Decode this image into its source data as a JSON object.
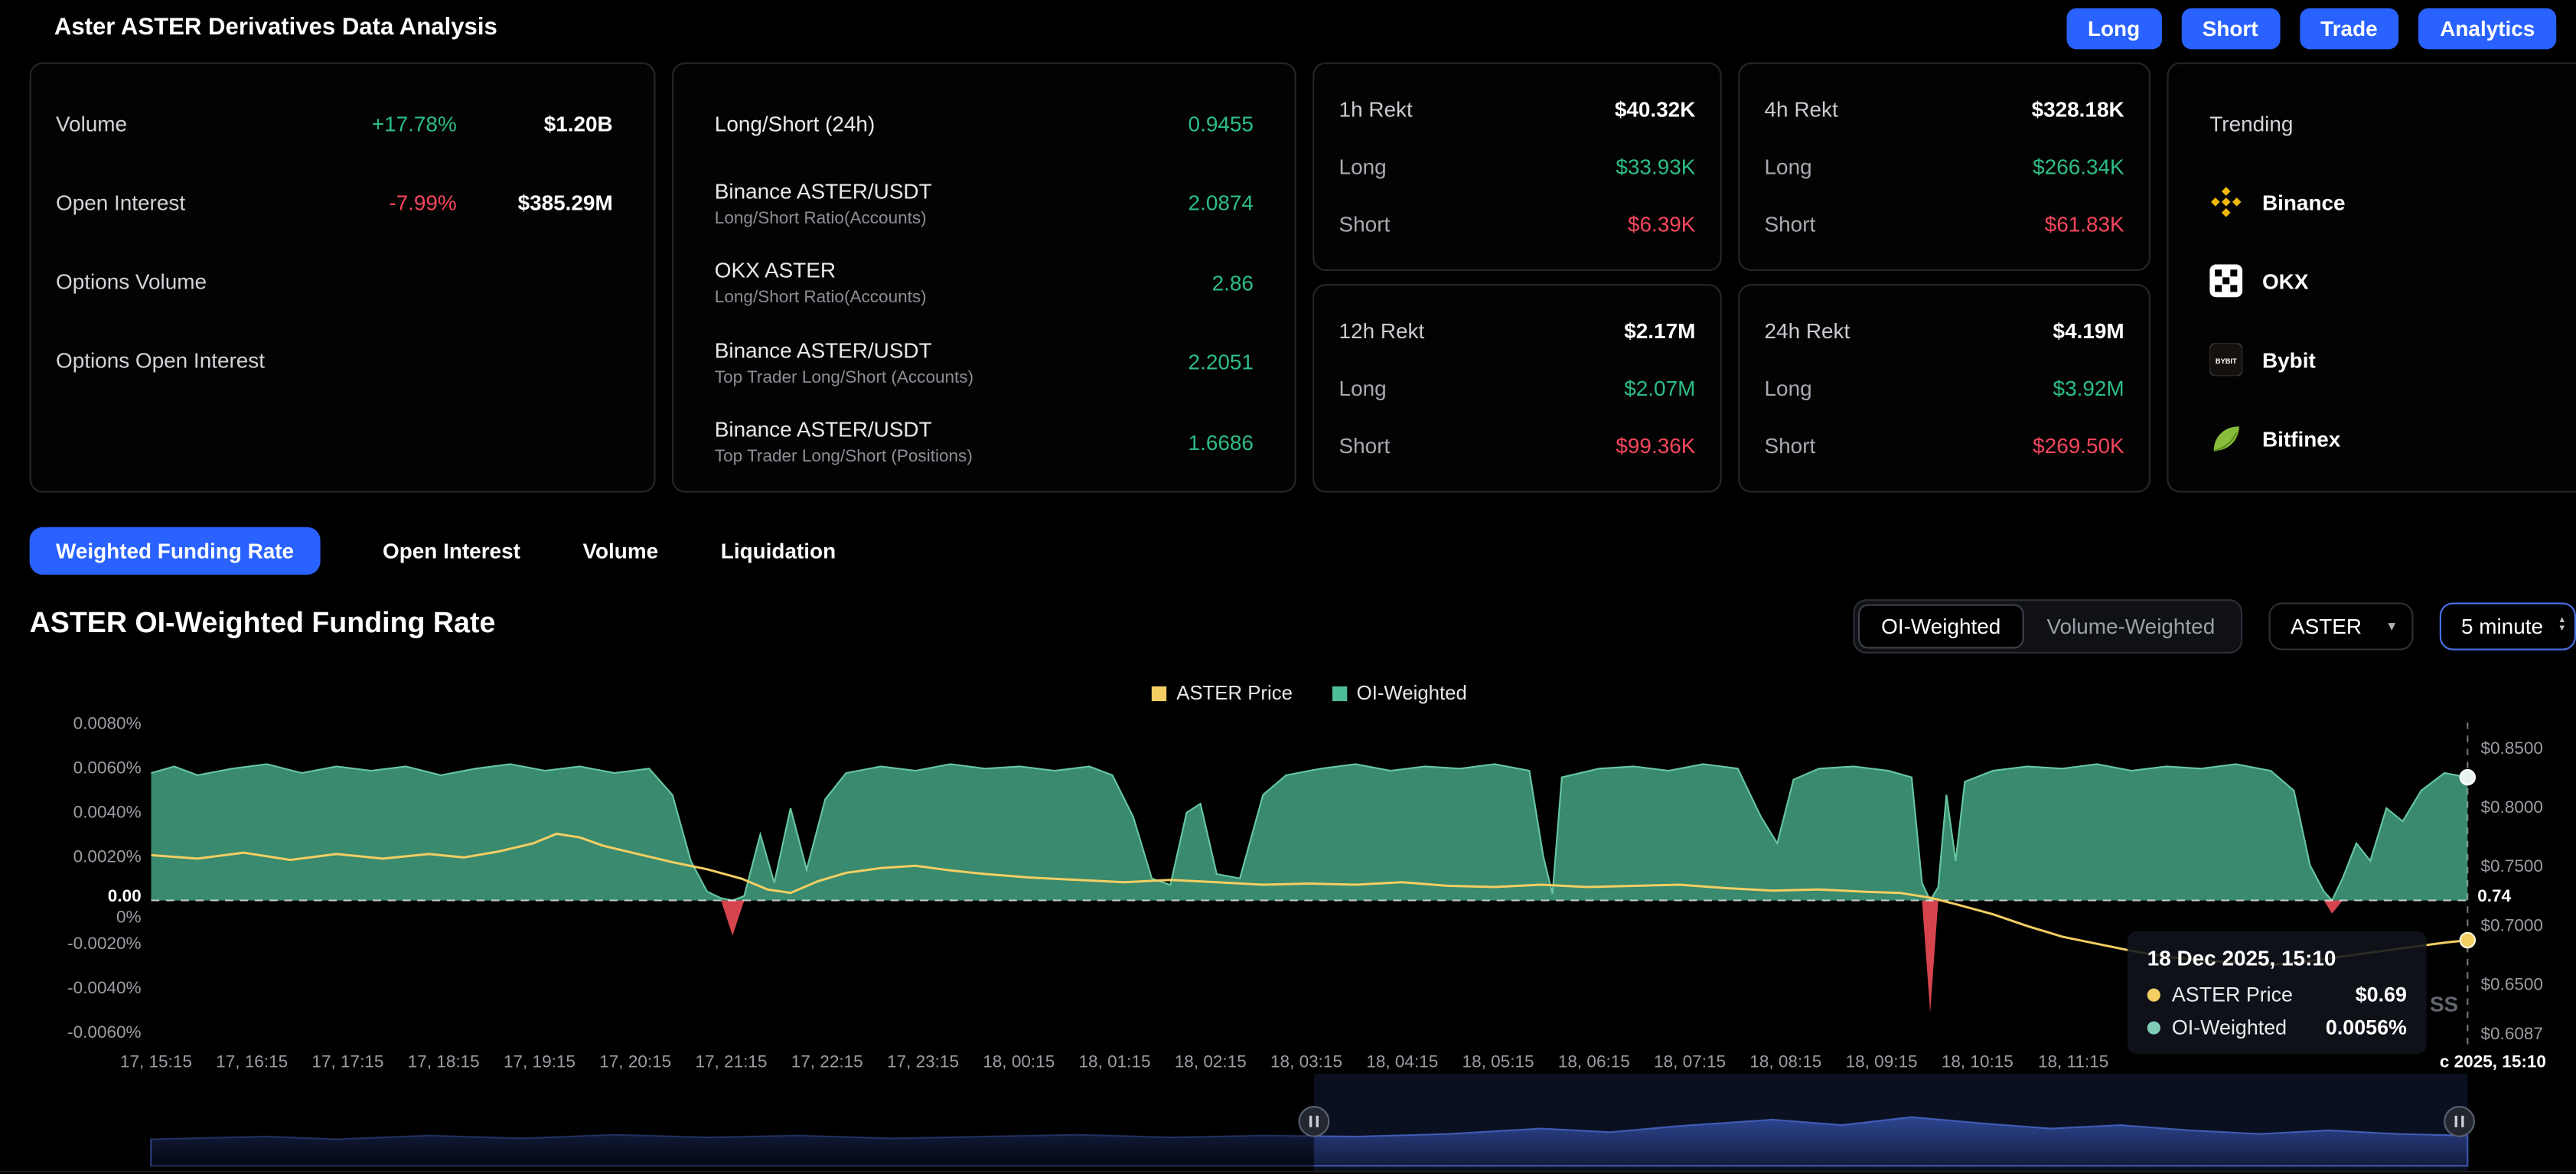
{
  "header": {
    "title": "Aster ASTER Derivatives Data Analysis",
    "buttons": [
      {
        "label": "Long"
      },
      {
        "label": "Short"
      },
      {
        "label": "Trade"
      },
      {
        "label": "Analytics"
      }
    ]
  },
  "colors": {
    "green": "#2EBD85",
    "red": "#F6465D",
    "blue": "#2962FF",
    "area_green": "#3E9677",
    "area_red": "#E14852",
    "price_yellow": "#F3CE63"
  },
  "icons": {
    "caret_down": "▾",
    "spinner_up": "▴",
    "spinner_down": "▾"
  },
  "stats": {
    "rows": [
      {
        "label": "Volume",
        "pct": "+17.78%",
        "value": "$1.20B"
      },
      {
        "label": "Open Interest",
        "pct": "-7.99%",
        "value": "$385.29M"
      },
      {
        "label": "Options Volume",
        "pct": "",
        "value": ""
      },
      {
        "label": "Options Open Interest",
        "pct": "",
        "value": ""
      }
    ]
  },
  "long_short": {
    "rows": [
      {
        "label": "Long/Short (24h)",
        "sub": "",
        "value": "0.9455"
      },
      {
        "label": "Binance ASTER/USDT",
        "sub": "Long/Short Ratio(Accounts)",
        "value": "2.0874"
      },
      {
        "label": "OKX ASTER",
        "sub": "Long/Short Ratio(Accounts)",
        "value": "2.86"
      },
      {
        "label": "Binance ASTER/USDT",
        "sub": "Top Trader Long/Short (Accounts)",
        "value": "2.2051"
      },
      {
        "label": "Binance ASTER/USDT",
        "sub": "Top Trader Long/Short (Positions)",
        "value": "1.6686"
      }
    ]
  },
  "rekt_labels": {
    "long": "Long",
    "short": "Short"
  },
  "rekt": [
    {
      "title": "1h Rekt",
      "total": "$40.32K",
      "long": "$33.93K",
      "short": "$6.39K"
    },
    {
      "title": "12h Rekt",
      "total": "$2.17M",
      "long": "$2.07M",
      "short": "$99.36K"
    },
    {
      "title": "4h Rekt",
      "total": "$328.18K",
      "long": "$266.34K",
      "short": "$61.83K"
    },
    {
      "title": "24h Rekt",
      "total": "$4.19M",
      "long": "$3.92M",
      "short": "$269.50K"
    }
  ],
  "trending": {
    "title": "Trending",
    "items": [
      {
        "name": "Binance",
        "icon": "binance-icon"
      },
      {
        "name": "OKX",
        "icon": "okx-icon"
      },
      {
        "name": "Bybit",
        "icon": "bybit-icon",
        "icon_text": "BYBIT"
      },
      {
        "name": "Bitfinex",
        "icon": "bitfinex-icon"
      }
    ]
  },
  "tabs": [
    {
      "label": "Weighted Funding Rate",
      "active": true
    },
    {
      "label": "Open Interest",
      "active": false
    },
    {
      "label": "Volume",
      "active": false
    },
    {
      "label": "Liquidation",
      "active": false
    }
  ],
  "chart_header": {
    "title": "ASTER OI-Weighted Funding Rate",
    "toggle": [
      {
        "label": "OI-Weighted",
        "active": true
      },
      {
        "label": "Volume-Weighted",
        "active": false
      }
    ],
    "symbol_select": "ASTER",
    "interval_select": "5 minute"
  },
  "legend": [
    {
      "label": "ASTER Price",
      "color": "#F3CE63"
    },
    {
      "label": "OI-Weighted",
      "color": "#4DBE96"
    }
  ],
  "tooltip": {
    "title": "18 Dec 2025, 15:10",
    "rows": [
      {
        "label": "ASTER Price",
        "value": "$0.69"
      },
      {
        "label": "OI-Weighted",
        "value": "0.0056%"
      }
    ]
  },
  "watermark": "SS",
  "chart_data": {
    "type": "area",
    "title": "ASTER OI-Weighted Funding Rate",
    "x_ticks": [
      "17, 15:15",
      "17, 16:15",
      "17, 17:15",
      "17, 18:15",
      "17, 19:15",
      "17, 20:15",
      "17, 21:15",
      "17, 22:15",
      "17, 23:15",
      "18, 00:15",
      "18, 01:15",
      "18, 02:15",
      "18, 03:15",
      "18, 04:15",
      "18, 05:15",
      "18, 06:15",
      "18, 07:15",
      "18, 08:15",
      "18, 09:15",
      "18, 10:15",
      "18, 11:15"
    ],
    "x_cursor_label": "c 2025, 15:10",
    "left_axis": {
      "unit": "%",
      "range": [
        -0.0067,
        0.0081
      ],
      "ticks": [
        {
          "v": 0.008,
          "label": "0.0080%"
        },
        {
          "v": 0.006,
          "label": "0.0060%"
        },
        {
          "v": 0.004,
          "label": "0.0040%"
        },
        {
          "v": 0.002,
          "label": "0.0020%"
        },
        {
          "v": 0,
          "label": "0%",
          "dy": 11
        },
        {
          "v": -0.002,
          "label": "-0.0020%"
        },
        {
          "v": -0.004,
          "label": "-0.0040%"
        },
        {
          "v": -0.006,
          "label": "-0.0060%"
        }
      ]
    },
    "right_axis": {
      "unit": "$",
      "range": [
        0.5972,
        0.8722
      ],
      "ticks": [
        {
          "v": 0.85,
          "label": "$0.8500"
        },
        {
          "v": 0.8,
          "label": "$0.8000"
        },
        {
          "v": 0.75,
          "label": "$0.7500"
        },
        {
          "v": 0.7,
          "label": "$0.7000"
        },
        {
          "v": 0.65,
          "label": "$0.6500"
        },
        {
          "v": 0.6087,
          "label": "$0.6087"
        }
      ]
    },
    "zero_line": {
      "left_label": "0.00",
      "right_label": "0.74"
    },
    "end_markers": {
      "price": 0.688,
      "funding": 0.0056
    },
    "series": {
      "funding": {
        "name": "OI-Weighted",
        "kind": "area",
        "axis": "left",
        "color": "#3E9677",
        "edge": "#66C79E",
        "negative_color": "#E14852",
        "points": [
          [
            0,
            0.0058
          ],
          [
            0.01,
            0.0061
          ],
          [
            0.02,
            0.0057
          ],
          [
            0.035,
            0.006
          ],
          [
            0.05,
            0.0062
          ],
          [
            0.065,
            0.0058
          ],
          [
            0.08,
            0.0061
          ],
          [
            0.095,
            0.0059
          ],
          [
            0.11,
            0.0061
          ],
          [
            0.125,
            0.0057
          ],
          [
            0.14,
            0.006
          ],
          [
            0.155,
            0.0062
          ],
          [
            0.17,
            0.0059
          ],
          [
            0.185,
            0.0061
          ],
          [
            0.2,
            0.0058
          ],
          [
            0.215,
            0.006
          ],
          [
            0.225,
            0.0048
          ],
          [
            0.233,
            0.0018
          ],
          [
            0.24,
            0.0004
          ],
          [
            0.246,
            0.0001
          ],
          [
            0.251,
            -0.0016
          ],
          [
            0.256,
            0.0002
          ],
          [
            0.263,
            0.003
          ],
          [
            0.269,
            0.0008
          ],
          [
            0.276,
            0.0042
          ],
          [
            0.283,
            0.0014
          ],
          [
            0.291,
            0.0046
          ],
          [
            0.3,
            0.0058
          ],
          [
            0.315,
            0.0061
          ],
          [
            0.33,
            0.0059
          ],
          [
            0.345,
            0.0062
          ],
          [
            0.36,
            0.006
          ],
          [
            0.375,
            0.0061
          ],
          [
            0.39,
            0.0059
          ],
          [
            0.405,
            0.0061
          ],
          [
            0.415,
            0.0057
          ],
          [
            0.424,
            0.0038
          ],
          [
            0.432,
            0.001
          ],
          [
            0.44,
            0.0007
          ],
          [
            0.447,
            0.004
          ],
          [
            0.453,
            0.0044
          ],
          [
            0.46,
            0.0012
          ],
          [
            0.47,
            0.001
          ],
          [
            0.48,
            0.0048
          ],
          [
            0.49,
            0.0057
          ],
          [
            0.505,
            0.006
          ],
          [
            0.52,
            0.0062
          ],
          [
            0.535,
            0.0059
          ],
          [
            0.55,
            0.0061
          ],
          [
            0.565,
            0.006
          ],
          [
            0.58,
            0.0062
          ],
          [
            0.595,
            0.0059
          ],
          [
            0.601,
            0.002
          ],
          [
            0.605,
            0.0003
          ],
          [
            0.609,
            0.0056
          ],
          [
            0.625,
            0.006
          ],
          [
            0.64,
            0.0061
          ],
          [
            0.655,
            0.0059
          ],
          [
            0.67,
            0.0062
          ],
          [
            0.685,
            0.006
          ],
          [
            0.695,
            0.0038
          ],
          [
            0.702,
            0.0026
          ],
          [
            0.709,
            0.0055
          ],
          [
            0.72,
            0.006
          ],
          [
            0.735,
            0.0061
          ],
          [
            0.75,
            0.0059
          ],
          [
            0.76,
            0.0056
          ],
          [
            0.7645,
            0.0008
          ],
          [
            0.768,
            -0.0051
          ],
          [
            0.7715,
            0.0006
          ],
          [
            0.775,
            0.0048
          ],
          [
            0.779,
            0.0018
          ],
          [
            0.783,
            0.0054
          ],
          [
            0.795,
            0.0059
          ],
          [
            0.81,
            0.0061
          ],
          [
            0.825,
            0.006
          ],
          [
            0.84,
            0.0062
          ],
          [
            0.855,
            0.0059
          ],
          [
            0.87,
            0.0061
          ],
          [
            0.885,
            0.006
          ],
          [
            0.9,
            0.0062
          ],
          [
            0.915,
            0.0059
          ],
          [
            0.925,
            0.005
          ],
          [
            0.932,
            0.0016
          ],
          [
            0.938,
            0.0004
          ],
          [
            0.9415,
            -0.0006
          ],
          [
            0.946,
            0.001
          ],
          [
            0.952,
            0.0026
          ],
          [
            0.958,
            0.0018
          ],
          [
            0.965,
            0.0042
          ],
          [
            0.972,
            0.0036
          ],
          [
            0.98,
            0.005
          ],
          [
            0.99,
            0.0058
          ],
          [
            1,
            0.0056
          ]
        ]
      },
      "price": {
        "name": "ASTER Price",
        "kind": "line",
        "axis": "right",
        "color": "#F3CE63",
        "points": [
          [
            0,
            0.76
          ],
          [
            0.02,
            0.757
          ],
          [
            0.04,
            0.762
          ],
          [
            0.06,
            0.756
          ],
          [
            0.08,
            0.761
          ],
          [
            0.1,
            0.757
          ],
          [
            0.12,
            0.761
          ],
          [
            0.135,
            0.758
          ],
          [
            0.15,
            0.763
          ],
          [
            0.165,
            0.77
          ],
          [
            0.175,
            0.778
          ],
          [
            0.185,
            0.775
          ],
          [
            0.195,
            0.768
          ],
          [
            0.21,
            0.761
          ],
          [
            0.225,
            0.754
          ],
          [
            0.24,
            0.748
          ],
          [
            0.255,
            0.74
          ],
          [
            0.266,
            0.731
          ],
          [
            0.276,
            0.728
          ],
          [
            0.288,
            0.738
          ],
          [
            0.3,
            0.745
          ],
          [
            0.315,
            0.749
          ],
          [
            0.33,
            0.751
          ],
          [
            0.345,
            0.747
          ],
          [
            0.36,
            0.744
          ],
          [
            0.38,
            0.741
          ],
          [
            0.4,
            0.739
          ],
          [
            0.42,
            0.737
          ],
          [
            0.44,
            0.739
          ],
          [
            0.46,
            0.737
          ],
          [
            0.48,
            0.735
          ],
          [
            0.5,
            0.736
          ],
          [
            0.52,
            0.735
          ],
          [
            0.54,
            0.737
          ],
          [
            0.56,
            0.734
          ],
          [
            0.58,
            0.733
          ],
          [
            0.6,
            0.735
          ],
          [
            0.62,
            0.733
          ],
          [
            0.64,
            0.734
          ],
          [
            0.66,
            0.735
          ],
          [
            0.68,
            0.732
          ],
          [
            0.7,
            0.73
          ],
          [
            0.72,
            0.731
          ],
          [
            0.74,
            0.729
          ],
          [
            0.755,
            0.728
          ],
          [
            0.768,
            0.724
          ],
          [
            0.78,
            0.718
          ],
          [
            0.795,
            0.71
          ],
          [
            0.81,
            0.7
          ],
          [
            0.825,
            0.691
          ],
          [
            0.84,
            0.685
          ],
          [
            0.855,
            0.679
          ],
          [
            0.87,
            0.674
          ],
          [
            0.885,
            0.671
          ],
          [
            0.9,
            0.669
          ],
          [
            0.915,
            0.667
          ],
          [
            0.93,
            0.67
          ],
          [
            0.945,
            0.674
          ],
          [
            0.96,
            0.678
          ],
          [
            0.975,
            0.682
          ],
          [
            0.99,
            0.686
          ],
          [
            1,
            0.688
          ]
        ]
      }
    },
    "navigator": {
      "range": [
        0.502,
        1
      ],
      "points": [
        [
          0,
          0.3
        ],
        [
          0.05,
          0.33
        ],
        [
          0.08,
          0.3
        ],
        [
          0.12,
          0.34
        ],
        [
          0.16,
          0.31
        ],
        [
          0.2,
          0.35
        ],
        [
          0.24,
          0.32
        ],
        [
          0.28,
          0.34
        ],
        [
          0.32,
          0.31
        ],
        [
          0.36,
          0.33
        ],
        [
          0.4,
          0.35
        ],
        [
          0.44,
          0.32
        ],
        [
          0.48,
          0.34
        ],
        [
          0.52,
          0.33
        ],
        [
          0.56,
          0.36
        ],
        [
          0.6,
          0.42
        ],
        [
          0.63,
          0.38
        ],
        [
          0.66,
          0.45
        ],
        [
          0.7,
          0.52
        ],
        [
          0.73,
          0.46
        ],
        [
          0.76,
          0.55
        ],
        [
          0.79,
          0.48
        ],
        [
          0.82,
          0.42
        ],
        [
          0.85,
          0.46
        ],
        [
          0.88,
          0.4
        ],
        [
          0.91,
          0.36
        ],
        [
          0.94,
          0.4
        ],
        [
          0.97,
          0.36
        ],
        [
          1,
          0.34
        ]
      ]
    }
  }
}
